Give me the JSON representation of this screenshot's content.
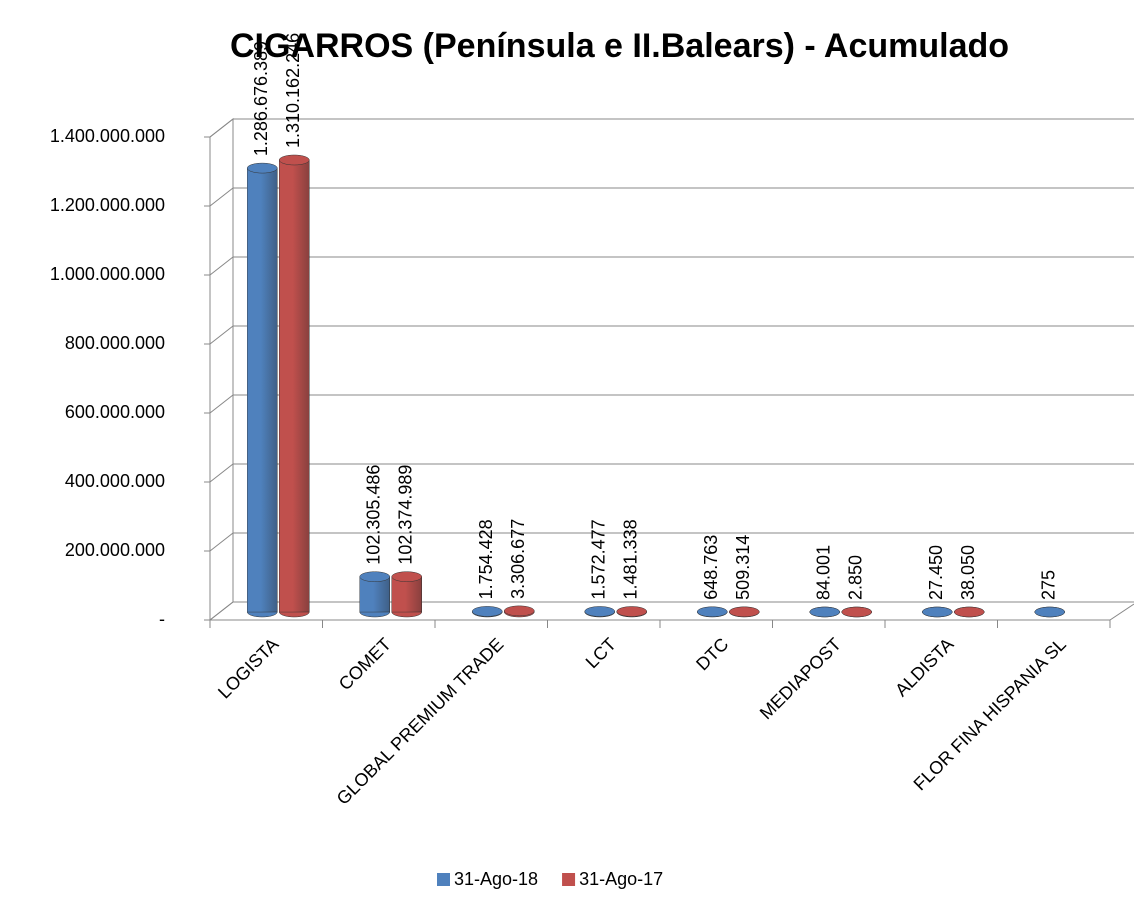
{
  "chart_data": {
    "type": "bar3d",
    "title": "CIGARROS  (Península e II.Balears) - Acumulado",
    "categories": [
      "LOGISTA",
      "COMET",
      "GLOBAL PREMIUM TRADE",
      "LCT",
      "DTC",
      "MEDIAPOST",
      "ALDISTA",
      "FLOR FINA HISPANIA SL"
    ],
    "series": [
      {
        "name": "31-Ago-18",
        "color": "#4f81bd",
        "values": [
          1286676389,
          102305486,
          1754428,
          1572477,
          648763,
          84001,
          27450,
          275
        ],
        "value_labels": [
          "1.286.676.389",
          "102.305.486",
          "1.754.428",
          "1.572.477",
          "648.763",
          "84.001",
          "27.450",
          "275"
        ]
      },
      {
        "name": "31-Ago-17",
        "color": "#c0504d",
        "values": [
          1310162246,
          102374989,
          3306677,
          1481338,
          509314,
          2850,
          38050,
          null
        ],
        "value_labels": [
          "1.310.162.246",
          "102.374.989",
          "3.306.677",
          "1.481.338",
          "509.314",
          "2.850",
          "38.050",
          null
        ]
      }
    ],
    "ylim": [
      0,
      1400000000
    ],
    "yticks": [
      {
        "value": 0,
        "label": "-"
      },
      {
        "value": 200000000,
        "label": "200.000.000"
      },
      {
        "value": 400000000,
        "label": "400.000.000"
      },
      {
        "value": 600000000,
        "label": "600.000.000"
      },
      {
        "value": 800000000,
        "label": "800.000.000"
      },
      {
        "value": 1000000000,
        "label": "1.000.000.000"
      },
      {
        "value": 1200000000,
        "label": "1.200.000.000"
      },
      {
        "value": 1400000000,
        "label": "1.400.000.000"
      }
    ],
    "grid": true,
    "legend": "bottom"
  }
}
